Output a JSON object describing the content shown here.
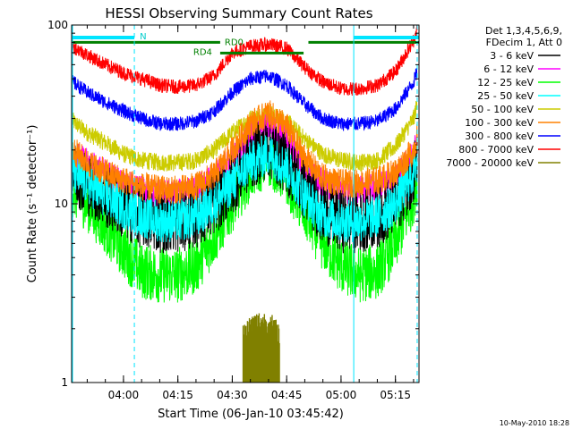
{
  "chart_data": {
    "type": "line",
    "title": "HESSI Observing Summary Count Rates",
    "xlabel": "Start Time (06-Jan-10 03:45:42)",
    "ylabel": "Count Rate (s⁻¹ detector⁻¹)",
    "y_scale": "log",
    "ylim": [
      1,
      100
    ],
    "xlim": [
      "03:45:42",
      "05:21:30"
    ],
    "x_tick_labels": [
      "04:00",
      "04:15",
      "04:30",
      "04:45",
      "05:00",
      "05:15"
    ],
    "y_tick_labels": [
      "1",
      "10",
      "100"
    ],
    "grid": false,
    "legend_position": "right",
    "legend_header": [
      "Det 1,3,4,5,6,9,",
      "FDecim 1, Att 0"
    ],
    "footer": "10-May-2010 18:28",
    "annotations": {
      "night_label": "N",
      "night_periods": [
        [
          "03:45:42",
          "04:03:00"
        ],
        [
          "05:03:30",
          "05:21:30"
        ]
      ],
      "rd0_label": "RD0",
      "rd4_label": "RD4",
      "rd_bar_y": 80,
      "rd_bars": [
        [
          "03:45:42",
          "04:26:40"
        ],
        [
          "04:26:40",
          "04:49:40"
        ],
        [
          "04:51:00",
          "05:21:30"
        ]
      ],
      "vertical_lines": [
        {
          "x": "04:03:00",
          "style": "dashed"
        },
        {
          "x": "05:03:30",
          "style": "solid"
        },
        {
          "x": "05:21:00",
          "style": "dashed"
        }
      ]
    },
    "series": [
      {
        "name": "3 - 6 keV",
        "color": "#000000",
        "x": [
          "03:46",
          "03:50",
          "03:55",
          "04:00",
          "04:05",
          "04:10",
          "04:15",
          "04:20",
          "04:25",
          "04:30",
          "04:35",
          "04:40",
          "04:45",
          "04:50",
          "04:55",
          "05:00",
          "05:05",
          "05:10",
          "05:15",
          "05:20",
          "05:21"
        ],
        "y": [
          15,
          13,
          11,
          9.5,
          8.5,
          8.0,
          8.0,
          8.5,
          10,
          13,
          18,
          21,
          17,
          12,
          9,
          8,
          8,
          8.5,
          10,
          15,
          18
        ]
      },
      {
        "name": "6 - 12 keV",
        "color": "#ff00ff",
        "x": [
          "03:46",
          "03:50",
          "03:55",
          "04:00",
          "04:05",
          "04:10",
          "04:15",
          "04:20",
          "04:25",
          "04:30",
          "04:35",
          "04:40",
          "04:45",
          "04:50",
          "04:55",
          "05:00",
          "05:05",
          "05:10",
          "05:15",
          "05:20",
          "05:21"
        ],
        "y": [
          19,
          17,
          15,
          13,
          12,
          11.5,
          11.5,
          12,
          14,
          18,
          24,
          27,
          23,
          16,
          13,
          12,
          12,
          12.5,
          14,
          19,
          22
        ]
      },
      {
        "name": "12 - 25 keV",
        "color": "#00ff00",
        "x": [
          "03:46",
          "03:50",
          "03:55",
          "04:00",
          "04:05",
          "04:10",
          "04:15",
          "04:20",
          "04:25",
          "04:30",
          "04:35",
          "04:40",
          "04:45",
          "04:50",
          "04:55",
          "05:00",
          "05:05",
          "05:10",
          "05:15",
          "05:20",
          "05:21"
        ],
        "y": [
          12,
          10,
          7.5,
          5.5,
          4.2,
          4.0,
          4.0,
          4.5,
          6.5,
          10,
          15,
          18,
          14,
          9,
          6,
          4.5,
          4,
          4.2,
          6,
          11,
          14
        ]
      },
      {
        "name": "25 - 50 keV",
        "color": "#00ffff",
        "x": [
          "03:46",
          "03:50",
          "03:55",
          "04:00",
          "04:05",
          "04:10",
          "04:15",
          "04:20",
          "04:25",
          "04:30",
          "04:35",
          "04:40",
          "04:45",
          "04:50",
          "04:55",
          "05:00",
          "05:05",
          "05:10",
          "05:15",
          "05:20",
          "05:21"
        ],
        "y": [
          15,
          13,
          11,
          9.5,
          8.5,
          8.0,
          8.0,
          8.5,
          10,
          13,
          17,
          19,
          16,
          11,
          8.5,
          8,
          8,
          8.5,
          10,
          15,
          18
        ]
      },
      {
        "name": "50 - 100 keV",
        "color": "#cccc00",
        "x": [
          "03:46",
          "03:50",
          "03:55",
          "04:00",
          "04:05",
          "04:10",
          "04:15",
          "04:20",
          "04:25",
          "04:30",
          "04:35",
          "04:40",
          "04:45",
          "04:50",
          "04:55",
          "05:00",
          "05:05",
          "05:10",
          "05:15",
          "05:20",
          "05:21"
        ],
        "y": [
          29,
          25,
          22,
          19,
          17.5,
          17,
          17,
          17.5,
          20,
          25,
          30,
          32,
          29,
          23,
          19,
          17.5,
          17,
          17.5,
          21,
          30,
          36
        ]
      },
      {
        "name": "100 - 300 keV",
        "color": "#ff8000",
        "x": [
          "03:46",
          "03:50",
          "03:55",
          "04:00",
          "04:05",
          "04:10",
          "04:15",
          "04:20",
          "04:25",
          "04:30",
          "04:35",
          "04:40",
          "04:45",
          "04:50",
          "04:55",
          "05:00",
          "05:05",
          "05:10",
          "05:15",
          "05:20",
          "05:21"
        ],
        "y": [
          20,
          17,
          15,
          13.5,
          12.5,
          12,
          12,
          12.5,
          14.5,
          20,
          28,
          32,
          27,
          18,
          14,
          13,
          13,
          13.5,
          15,
          20,
          24
        ]
      },
      {
        "name": "300 - 800 keV",
        "color": "#0000ff",
        "x": [
          "03:46",
          "03:50",
          "03:55",
          "04:00",
          "04:05",
          "04:10",
          "04:15",
          "04:20",
          "04:25",
          "04:30",
          "04:35",
          "04:40",
          "04:45",
          "04:50",
          "04:55",
          "05:00",
          "05:05",
          "05:10",
          "05:15",
          "05:20",
          "05:21"
        ],
        "y": [
          48,
          42,
          37,
          33,
          30,
          28,
          28,
          29,
          33,
          42,
          50,
          52,
          46,
          36,
          30,
          28,
          28,
          29,
          34,
          48,
          55
        ]
      },
      {
        "name": "800 - 7000 keV",
        "color": "#ff0000",
        "x": [
          "03:46",
          "03:50",
          "03:55",
          "04:00",
          "04:05",
          "04:10",
          "04:15",
          "04:20",
          "04:25",
          "04:30",
          "04:35",
          "04:40",
          "04:45",
          "04:50",
          "04:55",
          "05:00",
          "05:05",
          "05:10",
          "05:15",
          "05:20",
          "05:21"
        ],
        "y": [
          76,
          68,
          60,
          54,
          50,
          46,
          45,
          46,
          52,
          70,
          76,
          78,
          74,
          58,
          48,
          44,
          44,
          46,
          55,
          82,
          95
        ]
      },
      {
        "name": "7000 - 20000 keV",
        "color": "#808000",
        "x": [
          "04:33",
          "04:35",
          "04:37",
          "04:39",
          "04:41",
          "04:43"
        ],
        "y": [
          1.8,
          2.0,
          2.1,
          2.1,
          2.0,
          1.8
        ]
      }
    ]
  }
}
